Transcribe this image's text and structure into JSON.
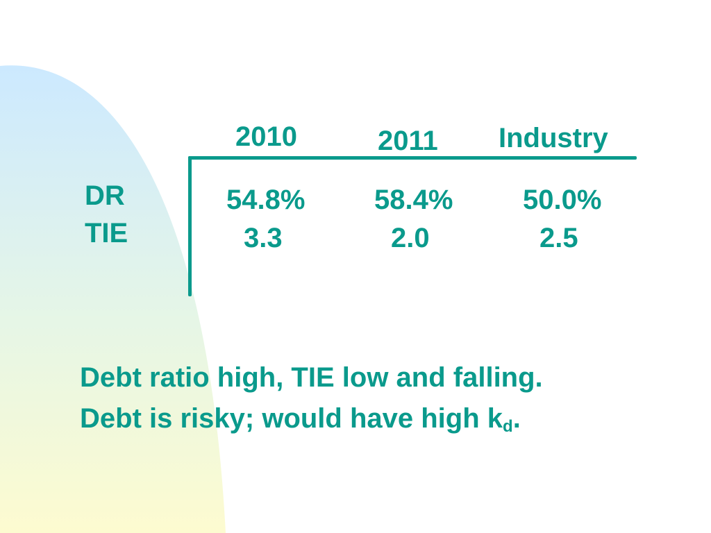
{
  "colors": {
    "text": "#0a9a8c",
    "background": "#ffffff",
    "shape_gradient_top": "#cce9ff",
    "shape_gradient_bottom": "#fdfbd0"
  },
  "table": {
    "headers": [
      "2010",
      "2011",
      "Industry"
    ],
    "rows": [
      {
        "label": "DR",
        "values": [
          "54.8%",
          "58.4%",
          "50.0%"
        ]
      },
      {
        "label": "TIE",
        "values": [
          "3.3",
          "2.0",
          "2.5"
        ]
      }
    ]
  },
  "notes": {
    "line1": "Debt ratio high, TIE low and falling.",
    "line2_main": "Debt is risky; would have high k",
    "line2_sub": "d",
    "line2_end": "."
  }
}
